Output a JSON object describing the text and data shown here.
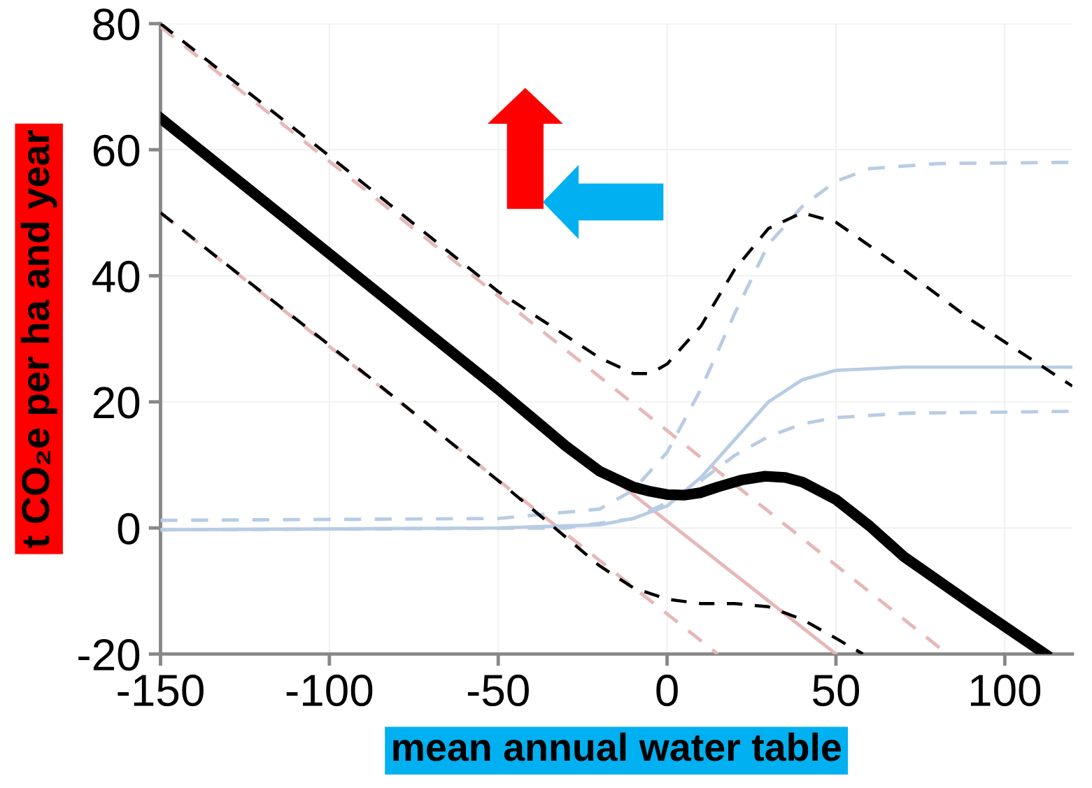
{
  "chart_data": {
    "type": "line",
    "xlabel": "mean annual water table",
    "ylabel": "t CO₂e per ha and year",
    "xlim": [
      -150,
      120
    ],
    "xticks": [
      -150,
      -100,
      -50,
      0,
      50,
      100
    ],
    "ylim": [
      -20,
      80
    ],
    "yticks": [
      -20,
      0,
      20,
      40,
      60,
      80
    ],
    "grid": true,
    "marker": "none",
    "series": [
      {
        "color": "#e6b8b7",
        "line_style": "solid",
        "x": [
          -20,
          50
        ],
        "values": [
          9.5,
          -20
        ]
      },
      {
        "color": "#e6b8b7",
        "line_style": "dashed",
        "x": [
          -150,
          83
        ],
        "values": [
          79.5,
          -20
        ]
      },
      {
        "color": "#e6b8b7",
        "line_style": "dashed",
        "x": [
          -150,
          15
        ],
        "values": [
          50,
          -20
        ]
      },
      {
        "color": "#b8cce4",
        "line_style": "solid",
        "x": [
          -150,
          -50,
          -20,
          -10,
          0,
          10,
          20,
          30,
          40,
          50,
          70,
          120
        ],
        "values": [
          -0.3,
          0,
          0.5,
          1.5,
          3.5,
          8,
          14,
          20,
          23.5,
          25,
          25.5,
          25.5
        ]
      },
      {
        "color": "#b8cce4",
        "line_style": "dashed",
        "x": [
          -150,
          -50,
          -20,
          -10,
          0,
          10,
          20,
          30,
          40,
          50,
          60,
          80,
          120
        ],
        "values": [
          1.2,
          1.5,
          3,
          6,
          12,
          22,
          34,
          45,
          51,
          55,
          57,
          57.8,
          58
        ]
      },
      {
        "color": "#b8cce4",
        "line_style": "dashed",
        "x": [
          -150,
          -30,
          -10,
          0,
          10,
          20,
          30,
          40,
          50,
          70,
          120
        ],
        "values": [
          -0.3,
          0,
          1.5,
          4,
          7.5,
          11.5,
          14.5,
          16.5,
          17.5,
          18.2,
          18.5
        ]
      },
      {
        "color": "#000000",
        "line_style": "dashed",
        "x": [
          -150,
          -100,
          -50,
          -20,
          -10,
          -5,
          0,
          10,
          20,
          30,
          40,
          50,
          70,
          90,
          110,
          120
        ],
        "values": [
          80,
          59,
          37.5,
          27,
          24.5,
          24.5,
          26,
          32,
          41,
          47.5,
          50,
          48.5,
          41,
          33,
          26,
          22.5
        ]
      },
      {
        "color": "#000000",
        "line_style": "dashed",
        "x": [
          -150,
          -100,
          -50,
          -35,
          -20,
          -10,
          0,
          10,
          20,
          30,
          40,
          50,
          58
        ],
        "values": [
          50,
          29,
          7.5,
          0.8,
          -6,
          -9.5,
          -11.3,
          -12,
          -12,
          -12.5,
          -14.5,
          -17.5,
          -20
        ]
      },
      {
        "color": "#000000",
        "line_style": "solid",
        "x": [
          -150,
          -100,
          -50,
          -30,
          -20,
          -10,
          -5,
          0,
          5,
          10,
          15,
          22,
          29,
          35,
          40,
          50,
          60,
          70,
          90,
          112
        ],
        "values": [
          65,
          43.5,
          22,
          13,
          9,
          6.5,
          5.8,
          5.3,
          5.2,
          5.6,
          6.5,
          7.6,
          8.2,
          8,
          7.3,
          4.5,
          0.3,
          -4.5,
          -12,
          -20
        ]
      }
    ]
  }
}
